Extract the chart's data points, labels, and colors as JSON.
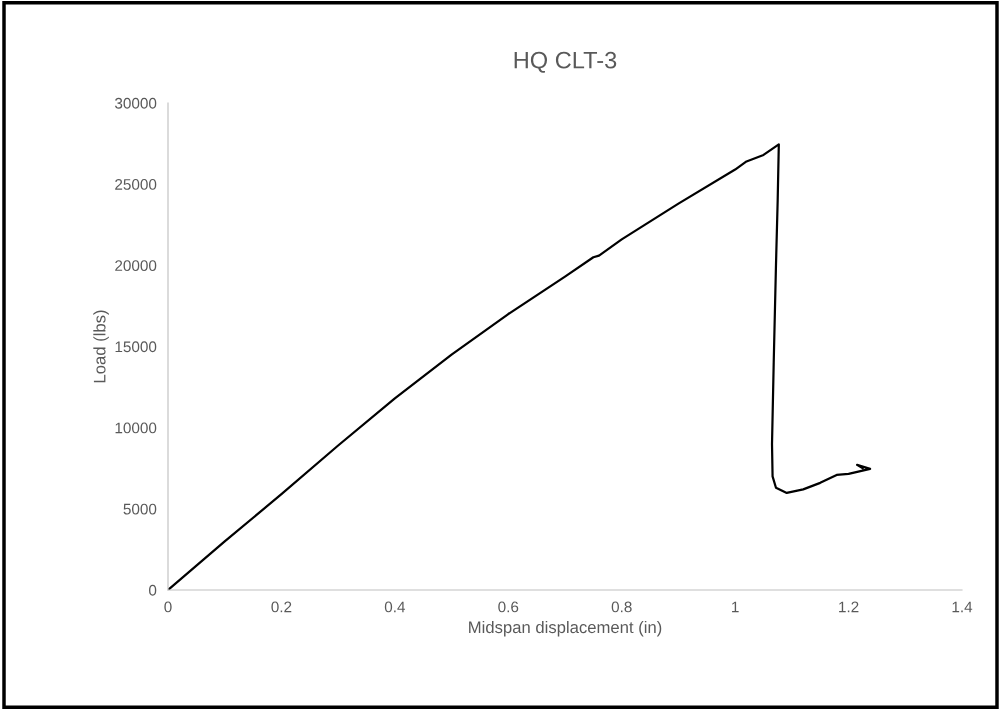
{
  "chart_data": {
    "type": "line",
    "title": "HQ CLT-3",
    "xlabel": "Midspan displacement (in)",
    "ylabel": "Load (lbs)",
    "series": [
      {
        "color": "#000000",
        "x": [
          0,
          0.1,
          0.2,
          0.3,
          0.4,
          0.5,
          0.6,
          0.7,
          0.75,
          0.76,
          0.8,
          0.9,
          1.0,
          1.02,
          1.05,
          1.077,
          1.075,
          1.072,
          1.068,
          1.065,
          1.066,
          1.072,
          1.091,
          1.12,
          1.15,
          1.179,
          1.2,
          1.238,
          1.215,
          1.225
        ],
        "values": [
          0,
          3000,
          5900,
          8900,
          11800,
          14500,
          17000,
          19300,
          20500,
          20600,
          21600,
          23800,
          25900,
          26400,
          26800,
          27450,
          24000,
          20000,
          14000,
          9000,
          7000,
          6300,
          5980,
          6200,
          6600,
          7090,
          7150,
          7460,
          7710,
          7500
        ]
      }
    ],
    "xlim": [
      0,
      1.4
    ],
    "xticks": [
      0,
      0.2,
      0.4,
      0.6,
      0.8,
      1,
      1.2,
      1.4
    ],
    "ylim": [
      0,
      30000
    ],
    "yticks": [
      0,
      5000,
      10000,
      15000,
      20000,
      25000,
      30000
    ],
    "line_style": "solid"
  }
}
